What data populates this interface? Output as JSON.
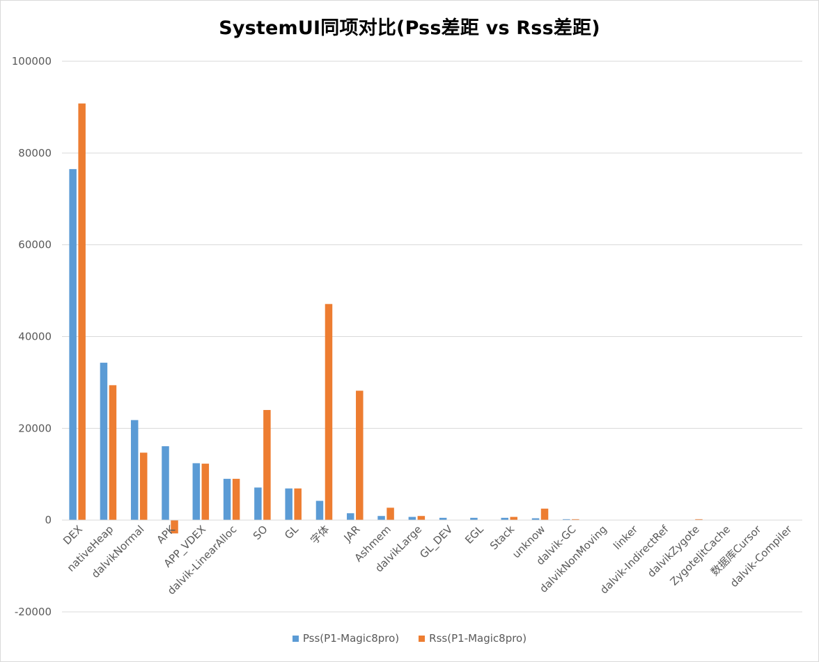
{
  "chart_data": {
    "type": "bar",
    "title": "SystemUI同项对比(Pss差距 vs Rss差距)",
    "categories": [
      "DEX",
      "nativeHeap",
      "dalvikNormal",
      "APK",
      "APP_VDEX",
      "dalvik-LinearAlloc",
      "SO",
      "GL",
      "字体",
      "JAR",
      "Ashmem",
      "dalvikLarge",
      "GL_DEV",
      "EGL",
      "Stack",
      "unknow",
      "dalvik-GC",
      "dalvikNonMoving",
      "linker",
      "dalvik-IndirectRef",
      "dalvikZygote",
      "ZygoteJitCache",
      "数据库Cursor",
      "dalvik-Compiler"
    ],
    "series": [
      {
        "name": "Pss(P1-Magic8pro)",
        "color": "#5b9bd5",
        "values": [
          76500,
          34300,
          21800,
          16100,
          12400,
          9000,
          7100,
          6900,
          4200,
          1500,
          900,
          700,
          500,
          500,
          500,
          400,
          200,
          0,
          0,
          0,
          0,
          0,
          0,
          0
        ]
      },
      {
        "name": "Rss(P1-Magic8pro)",
        "color": "#ed7d31",
        "values": [
          90800,
          29400,
          14700,
          -2900,
          12300,
          9000,
          24000,
          6900,
          47100,
          28200,
          2700,
          900,
          0,
          0,
          700,
          2500,
          200,
          0,
          0,
          0,
          200,
          0,
          0,
          0
        ]
      }
    ],
    "ylim": [
      -20000,
      100000
    ],
    "yticks": [
      -20000,
      0,
      20000,
      40000,
      60000,
      80000,
      100000
    ],
    "grid": true,
    "legend": "bottom"
  }
}
